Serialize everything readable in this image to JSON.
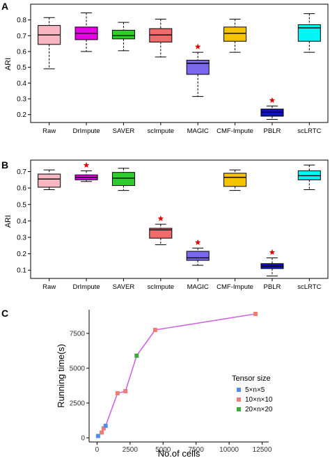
{
  "chart_data": [
    {
      "panel": "A",
      "type": "box",
      "ylabel": "ARI",
      "ylim": [
        0.15,
        0.9
      ],
      "yticks": [
        0.2,
        0.3,
        0.4,
        0.5,
        0.6,
        0.7,
        0.8
      ],
      "categories": [
        "Raw",
        "DrImpute",
        "SAVER",
        "scImpute",
        "MAGIC",
        "CMF-Impute",
        "PBLR",
        "scLRTC"
      ],
      "boxes": [
        {
          "name": "Raw",
          "color": "#F7B6C2",
          "min": 0.49,
          "q1": 0.645,
          "median": 0.705,
          "q3": 0.765,
          "max": 0.815,
          "star": false
        },
        {
          "name": "DrImpute",
          "color": "#E600E6",
          "min": 0.6,
          "q1": 0.675,
          "median": 0.715,
          "q3": 0.755,
          "max": 0.845,
          "star": false
        },
        {
          "name": "SAVER",
          "color": "#2ECC2E",
          "min": 0.605,
          "q1": 0.68,
          "median": 0.7,
          "q3": 0.735,
          "max": 0.785,
          "star": false
        },
        {
          "name": "scImpute",
          "color": "#F26B6B",
          "min": 0.565,
          "q1": 0.66,
          "median": 0.705,
          "q3": 0.745,
          "max": 0.805,
          "star": false
        },
        {
          "name": "MAGIC",
          "color": "#7B68EE",
          "min": 0.315,
          "q1": 0.455,
          "median": 0.525,
          "q3": 0.545,
          "max": 0.595,
          "star": true
        },
        {
          "name": "CMF-Impute",
          "color": "#F5C400",
          "min": 0.595,
          "q1": 0.665,
          "median": 0.715,
          "q3": 0.755,
          "max": 0.805,
          "star": false
        },
        {
          "name": "PBLR",
          "color": "#1010CC",
          "min": 0.17,
          "q1": 0.19,
          "median": 0.215,
          "q3": 0.235,
          "max": 0.255,
          "star": true
        },
        {
          "name": "scLRTC",
          "color": "#00F5F5",
          "min": 0.595,
          "q1": 0.665,
          "median": 0.75,
          "q3": 0.77,
          "max": 0.84,
          "star": false
        }
      ]
    },
    {
      "panel": "B",
      "type": "box",
      "ylabel": "ARI",
      "ylim": [
        0.05,
        0.77
      ],
      "yticks": [
        0.1,
        0.2,
        0.3,
        0.4,
        0.5,
        0.6,
        0.7
      ],
      "categories": [
        "Raw",
        "DrImpute",
        "SAVER",
        "scImpute",
        "MAGIC",
        "CMF-Impute",
        "PBLR",
        "scLRTC"
      ],
      "boxes": [
        {
          "name": "Raw",
          "color": "#F7B6C2",
          "min": 0.59,
          "q1": 0.605,
          "median": 0.655,
          "q3": 0.685,
          "max": 0.71,
          "star": false
        },
        {
          "name": "DrImpute",
          "color": "#E600E6",
          "min": 0.64,
          "q1": 0.65,
          "median": 0.665,
          "q3": 0.68,
          "max": 0.705,
          "star": true
        },
        {
          "name": "SAVER",
          "color": "#2ECC2E",
          "min": 0.585,
          "q1": 0.615,
          "median": 0.66,
          "q3": 0.695,
          "max": 0.72,
          "star": false
        },
        {
          "name": "scImpute",
          "color": "#F26B6B",
          "min": 0.255,
          "q1": 0.295,
          "median": 0.345,
          "q3": 0.355,
          "max": 0.38,
          "star": true
        },
        {
          "name": "MAGIC",
          "color": "#7B68EE",
          "min": 0.13,
          "q1": 0.16,
          "median": 0.175,
          "q3": 0.215,
          "max": 0.235,
          "star": true
        },
        {
          "name": "CMF-Impute",
          "color": "#F5C400",
          "min": 0.585,
          "q1": 0.61,
          "median": 0.665,
          "q3": 0.69,
          "max": 0.71,
          "star": false
        },
        {
          "name": "PBLR",
          "color": "#1010CC",
          "min": 0.065,
          "q1": 0.11,
          "median": 0.125,
          "q3": 0.14,
          "max": 0.175,
          "star": true
        },
        {
          "name": "scLRTC",
          "color": "#00F5F5",
          "min": 0.59,
          "q1": 0.65,
          "median": 0.675,
          "q3": 0.705,
          "max": 0.74,
          "star": false
        }
      ]
    },
    {
      "panel": "C",
      "type": "line",
      "xlabel": "No.of cells",
      "ylabel": "Running time(s)",
      "xlim": [
        -600,
        13000
      ],
      "ylim": [
        -300,
        9200
      ],
      "xticks": [
        0,
        2500,
        5000,
        7500,
        10000,
        12500
      ],
      "yticks": [
        0,
        2500,
        5000,
        7500
      ],
      "line_color": "#CC66E0",
      "legend_title": "Tensor size",
      "legend_position": "right",
      "groups": [
        {
          "name": "5×n×5",
          "color": "#4F8FE8"
        },
        {
          "name": "10×n×10",
          "color": "#F07C73"
        },
        {
          "name": "20×n×20",
          "color": "#3DAA3D"
        }
      ],
      "points": [
        {
          "x": 80,
          "y": 130,
          "group": 0
        },
        {
          "x": 350,
          "y": 380,
          "group": 1
        },
        {
          "x": 500,
          "y": 680,
          "group": 1
        },
        {
          "x": 650,
          "y": 860,
          "group": 0
        },
        {
          "x": 1550,
          "y": 3200,
          "group": 1
        },
        {
          "x": 2150,
          "y": 3350,
          "group": 1
        },
        {
          "x": 3000,
          "y": 5900,
          "group": 2
        },
        {
          "x": 4400,
          "y": 7750,
          "group": 1
        },
        {
          "x": 12000,
          "y": 8900,
          "group": 1
        }
      ]
    }
  ],
  "labels": {
    "A": "A",
    "B": "B",
    "C": "C"
  },
  "tick_labels": {
    "A_y": [
      "0.2",
      "0.3",
      "0.4",
      "0.5",
      "0.6",
      "0.7",
      "0.8"
    ],
    "B_y": [
      "0.1",
      "0.2",
      "0.3",
      "0.4",
      "0.5",
      "0.6",
      "0.7"
    ],
    "C_x": [
      "0",
      "2500",
      "5000",
      "7500",
      "10000",
      "12500"
    ],
    "C_y": [
      "0",
      "2500",
      "5000",
      "7500"
    ]
  },
  "colors": {
    "star": "#E00000",
    "axis": "#000000",
    "grid": "#EBEBEB"
  }
}
